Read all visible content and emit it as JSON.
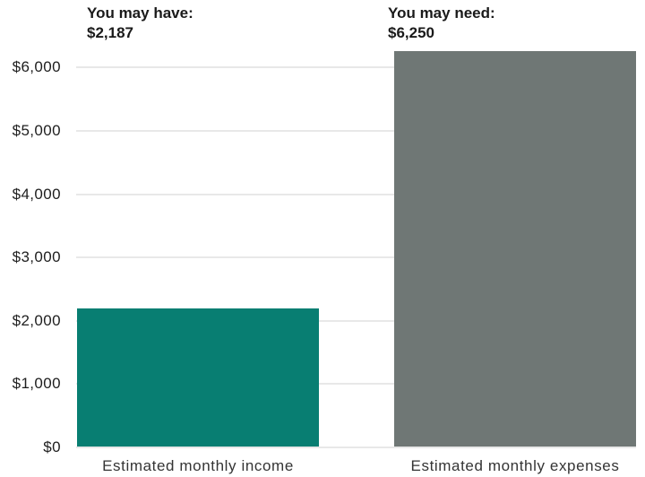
{
  "chart_data": {
    "type": "bar",
    "title": "",
    "xlabel": "",
    "ylabel": "",
    "ylim": [
      0,
      6250
    ],
    "grid": true,
    "legend": false,
    "background": "#ffffff",
    "grid_color": "#e8e8e8",
    "axis_text_color": "#1e1e1e",
    "categories": [
      "Estimated monthly income",
      "Estimated monthly expenses"
    ],
    "bars": [
      {
        "category": "Estimated monthly income",
        "annotation_label": "You may have:",
        "annotation_value": "$2,187",
        "value": 2187,
        "color": "#087e72"
      },
      {
        "category": "Estimated monthly expenses",
        "annotation_label": "You may need:",
        "annotation_value": "$6,250",
        "value": 6250,
        "color": "#6f7775"
      }
    ],
    "yticks": [
      {
        "value": 0,
        "label": "$0"
      },
      {
        "value": 1000,
        "label": "$1,000"
      },
      {
        "value": 2000,
        "label": "$2,000"
      },
      {
        "value": 3000,
        "label": "$3,000"
      },
      {
        "value": 4000,
        "label": "$4,000"
      },
      {
        "value": 5000,
        "label": "$5,000"
      },
      {
        "value": 6000,
        "label": "$6,000"
      }
    ]
  }
}
